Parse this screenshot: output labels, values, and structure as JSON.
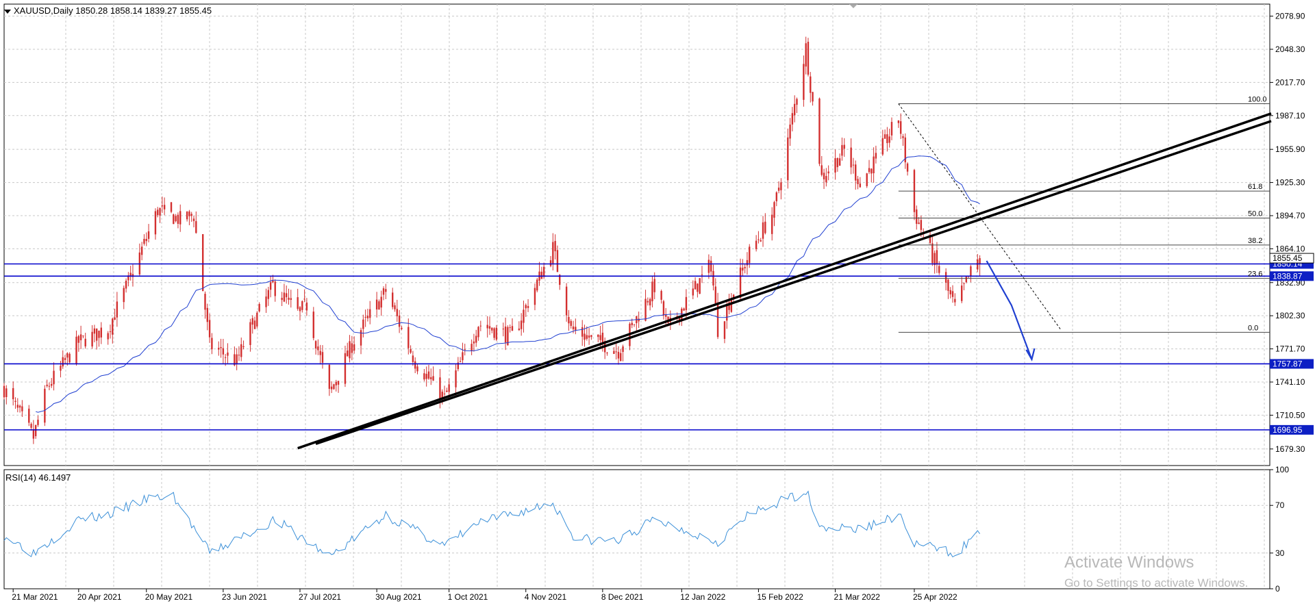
{
  "symbol_header": "XAUUSD,Daily  1850.28 1858.14 1839.27 1855.45",
  "rsi_header": "RSI(14) 46.1497",
  "watermark": {
    "title": "Activate Windows",
    "subtitle": "Go to Settings to activate Windows."
  },
  "colors": {
    "candle": "#d32f2f",
    "moving_average": "#1f3fd1",
    "level_line": "#0000cc",
    "trendline": "#000000",
    "rsi_line": "#3a8fd8",
    "grid": "#c8c8c8",
    "tag_bg": "#0d1fc4"
  },
  "chart_data": [
    {
      "type": "candlestick",
      "title": "XAUUSD,Daily",
      "ohlc_last": {
        "open": 1850.28,
        "high": 1858.14,
        "low": 1839.27,
        "close": 1855.45
      },
      "ylim": [
        1664,
        2090
      ],
      "y_ticks": [
        "2078.90",
        "2048.30",
        "2017.70",
        "1987.10",
        "1955.90",
        "1925.30",
        "1894.70",
        "1864.10",
        "1832.90",
        "1802.30",
        "1771.70",
        "1741.10",
        "1710.50",
        "1679.30"
      ],
      "x_ticks": [
        "21 Mar 2021",
        "20 Apr 2021",
        "20 May 2021",
        "23 Jun 2021",
        "27 Jul 2021",
        "30 Aug 2021",
        "1 Oct 2021",
        "4 Nov 2021",
        "8 Dec 2021",
        "12 Jan 2022",
        "15 Feb 2022",
        "21 Mar 2022",
        "25 Apr 2022"
      ],
      "close_anchors": [
        {
          "date": "2021-03-18",
          "close": 1735
        },
        {
          "date": "2021-03-31",
          "close": 1690
        },
        {
          "date": "2021-04-06",
          "close": 1736
        },
        {
          "date": "2021-04-20",
          "close": 1778
        },
        {
          "date": "2021-05-03",
          "close": 1790
        },
        {
          "date": "2021-05-14",
          "close": 1843
        },
        {
          "date": "2021-05-25",
          "close": 1900
        },
        {
          "date": "2021-06-04",
          "close": 1891
        },
        {
          "date": "2021-06-10",
          "close": 1895
        },
        {
          "date": "2021-06-17",
          "close": 1775
        },
        {
          "date": "2021-06-29",
          "close": 1760
        },
        {
          "date": "2021-07-05",
          "close": 1790
        },
        {
          "date": "2021-07-15",
          "close": 1830
        },
        {
          "date": "2021-07-26",
          "close": 1805
        },
        {
          "date": "2021-07-30",
          "close": 1812
        },
        {
          "date": "2021-08-09",
          "close": 1730
        },
        {
          "date": "2021-08-20",
          "close": 1780
        },
        {
          "date": "2021-09-03",
          "close": 1825
        },
        {
          "date": "2021-09-16",
          "close": 1760
        },
        {
          "date": "2021-09-29",
          "close": 1726
        },
        {
          "date": "2021-10-14",
          "close": 1795
        },
        {
          "date": "2021-10-29",
          "close": 1783
        },
        {
          "date": "2021-11-16",
          "close": 1865
        },
        {
          "date": "2021-11-24",
          "close": 1790
        },
        {
          "date": "2021-12-15",
          "close": 1770
        },
        {
          "date": "2021-12-31",
          "close": 1830
        },
        {
          "date": "2022-01-06",
          "close": 1790
        },
        {
          "date": "2022-01-25",
          "close": 1850
        },
        {
          "date": "2022-01-28",
          "close": 1790
        },
        {
          "date": "2022-02-11",
          "close": 1860
        },
        {
          "date": "2022-02-22",
          "close": 1900
        },
        {
          "date": "2022-03-08",
          "close": 2050
        },
        {
          "date": "2022-03-15",
          "close": 1930
        },
        {
          "date": "2022-03-25",
          "close": 1955
        },
        {
          "date": "2022-04-01",
          "close": 1925
        },
        {
          "date": "2022-04-08",
          "close": 1947
        },
        {
          "date": "2022-04-18",
          "close": 1985
        },
        {
          "date": "2022-04-25",
          "close": 1898
        },
        {
          "date": "2022-05-02",
          "close": 1862
        },
        {
          "date": "2022-05-13",
          "close": 1810
        },
        {
          "date": "2022-05-20",
          "close": 1842
        },
        {
          "date": "2022-05-24",
          "close": 1855.45
        }
      ],
      "horizontal_levels": [
        {
          "value": 1850.14,
          "label": "1850.14"
        },
        {
          "value": 1838.87,
          "label": "1838.87"
        },
        {
          "value": 1757.87,
          "label": "1757.87"
        },
        {
          "value": 1696.95,
          "label": "1696.95"
        }
      ],
      "current_price_label": "1855.45",
      "fibonacci": {
        "high": 1998,
        "low": 1787,
        "levels": [
          {
            "label": "100.0",
            "value": 1998.0
          },
          {
            "label": "61.8",
            "value": 1917.4
          },
          {
            "label": "50.0",
            "value": 1892.5
          },
          {
            "label": "38.2",
            "value": 1867.6
          },
          {
            "label": "23.6",
            "value": 1836.8
          },
          {
            "label": "0.0",
            "value": 1787.0
          }
        ]
      },
      "trendlines": [
        {
          "from": {
            "date": "2021-07-26",
            "price": 1680
          },
          "to": {
            "date": "2022-09-30",
            "price": 1989
          }
        },
        {
          "from": {
            "date": "2021-08-03",
            "price": 1684
          },
          "to": {
            "date": "2022-09-30",
            "price": 1982
          }
        }
      ],
      "projection_arrow": [
        {
          "date": "2022-05-27",
          "price": 1853
        },
        {
          "date": "2022-06-07",
          "price": 1812
        },
        {
          "date": "2022-06-16",
          "price": 1762
        }
      ],
      "dashed_line": [
        {
          "date": "2022-04-18",
          "price": 1998
        },
        {
          "date": "2022-06-29",
          "price": 1789
        }
      ]
    },
    {
      "type": "line",
      "title": "RSI(14)",
      "last_value": 46.1497,
      "ylim": [
        0,
        100
      ],
      "y_ticks": [
        "100",
        "70",
        "30",
        "0"
      ],
      "anchors": [
        {
          "date": "2021-03-18",
          "rsi": 45
        },
        {
          "date": "2021-03-31",
          "rsi": 30
        },
        {
          "date": "2021-04-20",
          "rsi": 58
        },
        {
          "date": "2021-05-03",
          "rsi": 62
        },
        {
          "date": "2021-05-20",
          "rsi": 75
        },
        {
          "date": "2021-06-01",
          "rsi": 78
        },
        {
          "date": "2021-06-17",
          "rsi": 30
        },
        {
          "date": "2021-07-06",
          "rsi": 48
        },
        {
          "date": "2021-07-16",
          "rsi": 58
        },
        {
          "date": "2021-08-09",
          "rsi": 27
        },
        {
          "date": "2021-09-03",
          "rsi": 62
        },
        {
          "date": "2021-09-29",
          "rsi": 36
        },
        {
          "date": "2021-10-14",
          "rsi": 55
        },
        {
          "date": "2021-11-16",
          "rsi": 72
        },
        {
          "date": "2021-11-26",
          "rsi": 42
        },
        {
          "date": "2021-12-15",
          "rsi": 40
        },
        {
          "date": "2021-12-31",
          "rsi": 58
        },
        {
          "date": "2022-01-28",
          "rsi": 40
        },
        {
          "date": "2022-02-11",
          "rsi": 62
        },
        {
          "date": "2022-03-08",
          "rsi": 82
        },
        {
          "date": "2022-03-15",
          "rsi": 52
        },
        {
          "date": "2022-04-01",
          "rsi": 50
        },
        {
          "date": "2022-04-18",
          "rsi": 62
        },
        {
          "date": "2022-04-25",
          "rsi": 38
        },
        {
          "date": "2022-05-13",
          "rsi": 30
        },
        {
          "date": "2022-05-24",
          "rsi": 46.1497
        }
      ]
    }
  ]
}
